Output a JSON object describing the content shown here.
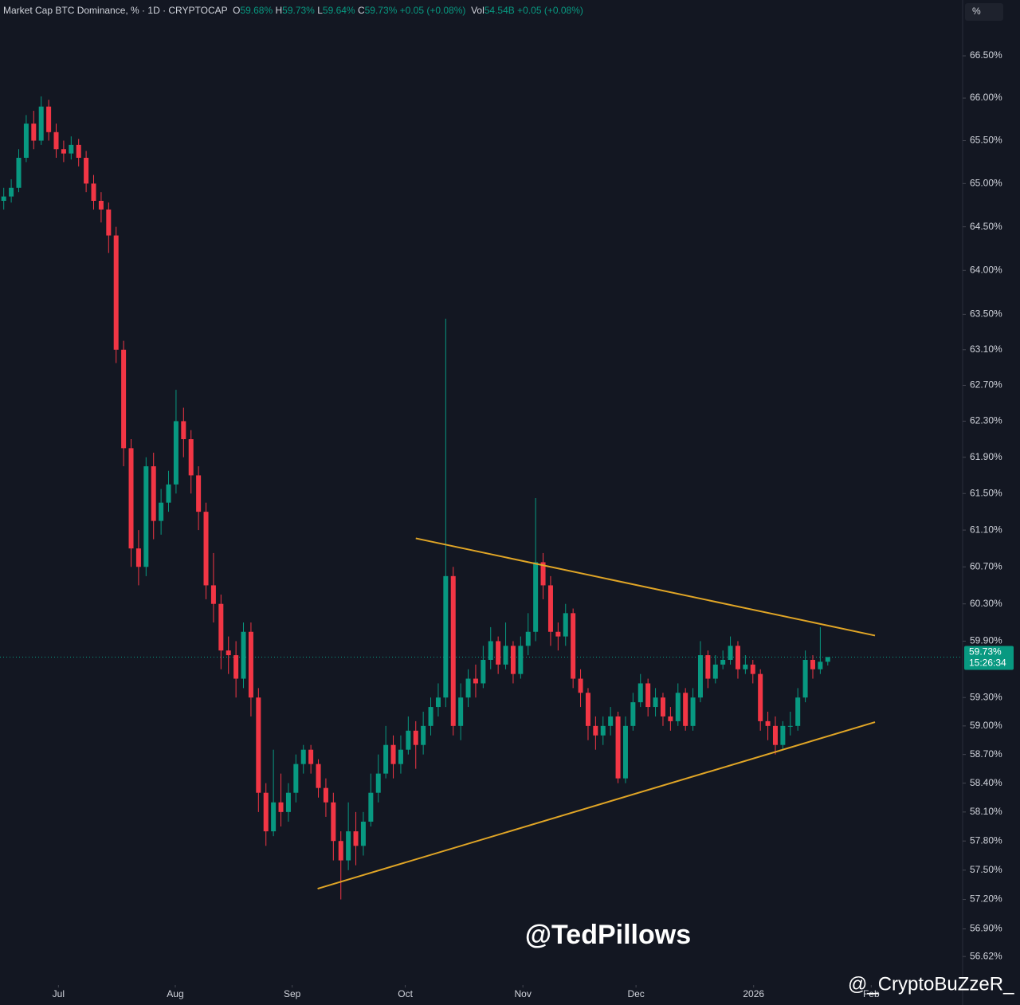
{
  "chart_data": {
    "type": "candlestick",
    "title": "Market Cap BTC Dominance, % · 1D · CRYPTOCAP",
    "ohlc": [
      {
        "label": "O",
        "value": "59.68%"
      },
      {
        "label": "H",
        "value": "59.73%"
      },
      {
        "label": "L",
        "value": "59.64%"
      },
      {
        "label": "C",
        "value": "59.73%"
      }
    ],
    "change": "+0.05 (+0.08%)",
    "volume": {
      "label": "Vol",
      "value": "54.54B",
      "change": "+0.05 (+0.08%)"
    },
    "scale_button": "%",
    "log_scale": true,
    "up_color": "#089981",
    "down_color": "#f23645",
    "trendline_color": "#e0a526",
    "candles": [
      [
        64.8,
        64.95,
        64.7,
        64.85
      ],
      [
        64.85,
        65.05,
        64.78,
        64.95
      ],
      [
        64.95,
        65.4,
        64.9,
        65.3
      ],
      [
        65.3,
        65.8,
        65.25,
        65.7
      ],
      [
        65.7,
        65.85,
        65.4,
        65.5
      ],
      [
        65.5,
        66.02,
        65.45,
        65.9
      ],
      [
        65.9,
        65.98,
        65.5,
        65.6
      ],
      [
        65.6,
        65.7,
        65.3,
        65.4
      ],
      [
        65.4,
        65.5,
        65.25,
        65.35
      ],
      [
        65.35,
        65.55,
        65.28,
        65.45
      ],
      [
        65.45,
        65.52,
        65.2,
        65.3
      ],
      [
        65.3,
        65.38,
        64.9,
        65.0
      ],
      [
        65.0,
        65.1,
        64.7,
        64.8
      ],
      [
        64.8,
        64.9,
        64.55,
        64.7
      ],
      [
        64.7,
        64.78,
        64.2,
        64.4
      ],
      [
        64.4,
        64.5,
        62.95,
        63.1
      ],
      [
        63.1,
        63.2,
        61.8,
        62.0
      ],
      [
        62.0,
        62.1,
        60.7,
        60.9
      ],
      [
        60.9,
        61.1,
        60.5,
        60.7
      ],
      [
        60.7,
        61.9,
        60.6,
        61.8
      ],
      [
        61.8,
        61.95,
        61.0,
        61.2
      ],
      [
        61.2,
        61.55,
        61.05,
        61.4
      ],
      [
        61.4,
        61.75,
        61.3,
        61.6
      ],
      [
        61.6,
        62.65,
        61.5,
        62.3
      ],
      [
        62.3,
        62.45,
        61.9,
        62.1
      ],
      [
        62.1,
        62.2,
        61.5,
        61.7
      ],
      [
        61.7,
        61.8,
        61.1,
        61.3
      ],
      [
        61.3,
        61.4,
        60.35,
        60.5
      ],
      [
        60.5,
        60.85,
        60.1,
        60.3
      ],
      [
        60.3,
        60.4,
        59.6,
        59.8
      ],
      [
        59.8,
        59.95,
        59.55,
        59.75
      ],
      [
        59.75,
        59.9,
        59.3,
        59.5
      ],
      [
        59.5,
        60.1,
        59.4,
        60.0
      ],
      [
        60.0,
        60.1,
        59.1,
        59.3
      ],
      [
        59.3,
        59.4,
        58.1,
        58.3
      ],
      [
        58.3,
        58.4,
        57.75,
        57.9
      ],
      [
        57.9,
        58.75,
        57.85,
        58.2
      ],
      [
        58.2,
        58.5,
        57.95,
        58.1
      ],
      [
        58.1,
        58.4,
        58.0,
        58.3
      ],
      [
        58.3,
        58.7,
        58.2,
        58.6
      ],
      [
        58.6,
        58.8,
        58.5,
        58.75
      ],
      [
        58.75,
        58.8,
        58.5,
        58.6
      ],
      [
        58.6,
        58.65,
        58.25,
        58.35
      ],
      [
        58.35,
        58.45,
        58.05,
        58.2
      ],
      [
        58.2,
        58.3,
        57.6,
        57.8
      ],
      [
        57.8,
        57.9,
        57.2,
        57.6
      ],
      [
        57.6,
        58.2,
        57.5,
        57.9
      ],
      [
        57.9,
        58.1,
        57.55,
        57.75
      ],
      [
        57.75,
        58.1,
        57.65,
        58.0
      ],
      [
        58.0,
        58.5,
        57.95,
        58.3
      ],
      [
        58.3,
        58.7,
        58.2,
        58.5
      ],
      [
        58.5,
        59.0,
        58.45,
        58.8
      ],
      [
        58.8,
        58.9,
        58.45,
        58.6
      ],
      [
        58.6,
        58.9,
        58.5,
        58.75
      ],
      [
        58.75,
        59.1,
        58.7,
        58.95
      ],
      [
        58.95,
        59.05,
        58.55,
        58.8
      ],
      [
        58.8,
        59.15,
        58.7,
        59.0
      ],
      [
        59.0,
        59.3,
        58.9,
        59.2
      ],
      [
        59.2,
        59.45,
        59.1,
        59.3
      ],
      [
        59.3,
        63.45,
        59.2,
        60.6
      ],
      [
        60.6,
        60.7,
        58.9,
        59.0
      ],
      [
        59.0,
        59.45,
        58.85,
        59.3
      ],
      [
        59.3,
        59.6,
        59.2,
        59.5
      ],
      [
        59.5,
        59.65,
        59.3,
        59.45
      ],
      [
        59.45,
        59.85,
        59.4,
        59.7
      ],
      [
        59.7,
        60.05,
        59.6,
        59.9
      ],
      [
        59.9,
        59.95,
        59.55,
        59.65
      ],
      [
        59.65,
        60.1,
        59.6,
        59.85
      ],
      [
        59.85,
        59.9,
        59.45,
        59.55
      ],
      [
        59.55,
        59.95,
        59.5,
        59.85
      ],
      [
        59.85,
        60.2,
        59.75,
        60.0
      ],
      [
        60.0,
        61.45,
        59.9,
        60.75
      ],
      [
        60.75,
        60.85,
        60.35,
        60.5
      ],
      [
        60.5,
        60.6,
        59.85,
        60.0
      ],
      [
        60.0,
        60.1,
        59.8,
        59.95
      ],
      [
        59.95,
        60.3,
        59.85,
        60.2
      ],
      [
        60.2,
        60.25,
        59.4,
        59.5
      ],
      [
        59.5,
        59.6,
        59.2,
        59.35
      ],
      [
        59.35,
        59.4,
        58.85,
        59.0
      ],
      [
        59.0,
        59.1,
        58.75,
        58.9
      ],
      [
        58.9,
        59.1,
        58.8,
        59.0
      ],
      [
        59.0,
        59.2,
        58.9,
        59.1
      ],
      [
        59.1,
        59.15,
        58.4,
        58.45
      ],
      [
        58.45,
        59.1,
        58.4,
        59.0
      ],
      [
        59.0,
        59.35,
        58.95,
        59.25
      ],
      [
        59.25,
        59.55,
        59.2,
        59.45
      ],
      [
        59.45,
        59.5,
        59.1,
        59.2
      ],
      [
        59.2,
        59.4,
        59.1,
        59.3
      ],
      [
        59.3,
        59.35,
        59.0,
        59.1
      ],
      [
        59.1,
        59.2,
        58.95,
        59.05
      ],
      [
        59.05,
        59.45,
        59.0,
        59.35
      ],
      [
        59.35,
        59.4,
        58.95,
        59.0
      ],
      [
        59.0,
        59.4,
        58.95,
        59.3
      ],
      [
        59.3,
        59.9,
        59.25,
        59.75
      ],
      [
        59.75,
        59.8,
        59.4,
        59.5
      ],
      [
        59.5,
        59.75,
        59.45,
        59.65
      ],
      [
        59.65,
        59.8,
        59.6,
        59.7
      ],
      [
        59.7,
        59.95,
        59.65,
        59.85
      ],
      [
        59.85,
        59.9,
        59.5,
        59.6
      ],
      [
        59.6,
        59.75,
        59.55,
        59.65
      ],
      [
        59.65,
        59.7,
        59.45,
        59.55
      ],
      [
        59.55,
        59.6,
        58.95,
        59.05
      ],
      [
        59.05,
        59.15,
        58.85,
        59.0
      ],
      [
        59.0,
        59.1,
        58.7,
        58.8
      ],
      [
        58.8,
        59.05,
        58.75,
        59.0
      ],
      [
        59.0,
        59.15,
        58.9,
        59.0
      ],
      [
        59.0,
        59.4,
        58.95,
        59.3
      ],
      [
        59.3,
        59.8,
        59.25,
        59.7
      ],
      [
        59.7,
        59.75,
        59.5,
        59.6
      ],
      [
        59.6,
        60.05,
        59.55,
        59.68
      ],
      [
        59.68,
        59.73,
        59.64,
        59.73
      ]
    ],
    "xlim": [
      -0.5,
      128
    ],
    "xticks": [
      {
        "value": 7.3,
        "label": "Jul"
      },
      {
        "value": 22.9,
        "label": "Aug"
      },
      {
        "value": 38.5,
        "label": "Sep"
      },
      {
        "value": 53.6,
        "label": "Oct"
      },
      {
        "value": 69.3,
        "label": "Nov"
      },
      {
        "value": 84.4,
        "label": "Dec"
      },
      {
        "value": 100.1,
        "label": "2026"
      },
      {
        "value": 115.8,
        "label": "Feb"
      }
    ],
    "ylim": [
      56.38,
      66.88
    ],
    "yticks": [
      {
        "value": 66.5,
        "label": "66.50%"
      },
      {
        "value": 66.0,
        "label": "66.00%"
      },
      {
        "value": 65.5,
        "label": "65.50%"
      },
      {
        "value": 65.0,
        "label": "65.00%"
      },
      {
        "value": 64.5,
        "label": "64.50%"
      },
      {
        "value": 64.0,
        "label": "64.00%"
      },
      {
        "value": 63.5,
        "label": "63.50%"
      },
      {
        "value": 63.1,
        "label": "63.10%"
      },
      {
        "value": 62.7,
        "label": "62.70%"
      },
      {
        "value": 62.3,
        "label": "62.30%"
      },
      {
        "value": 61.9,
        "label": "61.90%"
      },
      {
        "value": 61.5,
        "label": "61.50%"
      },
      {
        "value": 61.1,
        "label": "61.10%"
      },
      {
        "value": 60.7,
        "label": "60.70%"
      },
      {
        "value": 60.3,
        "label": "60.30%"
      },
      {
        "value": 59.9,
        "label": "59.90%"
      },
      {
        "value": 59.3,
        "label": "59.30%"
      },
      {
        "value": 59.0,
        "label": "59.00%"
      },
      {
        "value": 58.7,
        "label": "58.70%"
      },
      {
        "value": 58.4,
        "label": "58.40%"
      },
      {
        "value": 58.1,
        "label": "58.10%"
      },
      {
        "value": 57.8,
        "label": "57.80%"
      },
      {
        "value": 57.5,
        "label": "57.50%"
      },
      {
        "value": 57.2,
        "label": "57.20%"
      },
      {
        "value": 56.9,
        "label": "56.90%"
      },
      {
        "value": 56.62,
        "label": "56.62%"
      }
    ],
    "last_price": {
      "value": 59.73,
      "label": "59.73%"
    },
    "countdown": "15:26:34",
    "trendlines": [
      {
        "start": [
          55.0,
          61.01
        ],
        "end": [
          116.3,
          59.96
        ]
      },
      {
        "start": [
          41.9,
          57.31
        ],
        "end": [
          116.3,
          59.04
        ]
      }
    ],
    "watermarks": [
      "@TedPillows",
      "@_CryptoBuZzeR_"
    ]
  }
}
